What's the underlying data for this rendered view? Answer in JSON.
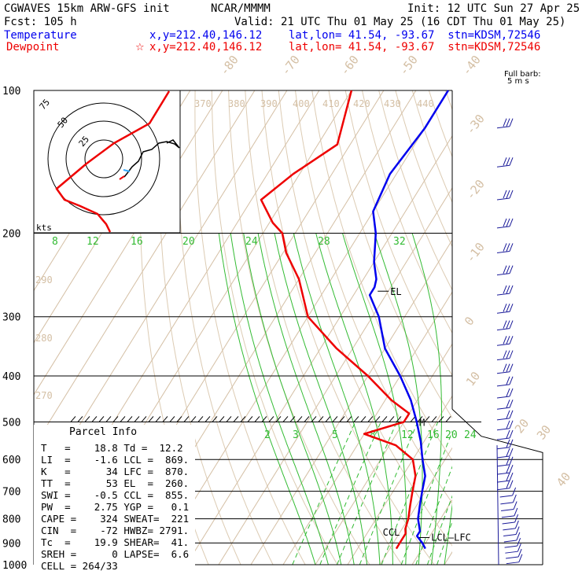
{
  "header": {
    "model": "CGWAVES 15km ARW-GFS init",
    "forecast": "Fcst:  105 h",
    "org": "NCAR/MMMM",
    "init": "Init: 12 UTC Sun 27 Apr 25",
    "valid": "Valid: 21 UTC Thu 01 May 25 (16 CDT Thu 01 May 25)",
    "temp_label": "Temperature",
    "temp_info": "x,y=212.40,146.12    lat,lon= 41.54, -93.67  stn=KDSM,72546",
    "dew_label": "Dewpoint",
    "dew_info": "x,y=212.40,146.12    lat,lon= 41.54, -93.67  stn=KDSM,72546",
    "barb_note_1": "Full barb:",
    "barb_note_2": "5 m s",
    "colors": {
      "temperature": "#0000ee",
      "dewpoint": "#ee0000"
    }
  },
  "parcel_info": {
    "title": "Parcel Info",
    "rows": [
      "T   =    18.8 Td =  12.2",
      "LI  =    -1.6 LCL =  869.",
      "K   =      34 LFC =  870.",
      "TT  =      53 EL  =  260.",
      "SWI =    -0.5 CCL =  855.",
      "PW  =    2.75 YGP =   0.1",
      "CAPE =    324 SWEAT=  221",
      "CIN  =    -72 HWBZ= 2791.",
      "Tc  =    19.9 SHEAR=  41.",
      "SREH =      0 LAPSE=  6.6",
      "CELL = 264/33"
    ]
  },
  "hodograph": {
    "ring_labels": [
      "75",
      "50",
      "25"
    ],
    "unit_label": "kts"
  },
  "chart_data": {
    "type": "line",
    "chart_kind": "skew-T log-P sounding",
    "y_axis": {
      "label": "",
      "ticks": [
        100,
        200,
        300,
        400,
        500,
        600,
        700,
        800,
        900,
        1000
      ]
    },
    "isotherm_labels": [
      "-80",
      "-70",
      "-60",
      "-50",
      "-40",
      "-30",
      "-20",
      "-10",
      "0",
      "10",
      "20",
      "30",
      "40"
    ],
    "theta_labels": [
      "370",
      "380",
      "390",
      "400",
      "410",
      "420",
      "430",
      "440",
      "290",
      "280",
      "270"
    ],
    "moist_adiabat_labels": [
      "8",
      "12",
      "16",
      "20",
      "24",
      "28",
      "32"
    ],
    "mixing_ratio_labels": [
      "2",
      "3",
      "5",
      "8",
      "12",
      "16",
      "20",
      "24"
    ],
    "annotations": {
      "el": "EL",
      "ccl": "CCL",
      "lcl_lfc": "LCL—LFC",
      "mid": "M"
    },
    "series": [
      {
        "name": "Temperature",
        "color": "#0000ee",
        "points": [
          [
            100,
            -60
          ],
          [
            120,
            -60
          ],
          [
            150,
            -62
          ],
          [
            180,
            -60
          ],
          [
            200,
            -55
          ],
          [
            230,
            -50
          ],
          [
            250,
            -46
          ],
          [
            260,
            -45
          ],
          [
            270,
            -45
          ],
          [
            300,
            -38
          ],
          [
            350,
            -30
          ],
          [
            400,
            -20
          ],
          [
            450,
            -12
          ],
          [
            500,
            -6
          ],
          [
            550,
            -1
          ],
          [
            600,
            3
          ],
          [
            650,
            7
          ],
          [
            700,
            9
          ],
          [
            750,
            11
          ],
          [
            800,
            13
          ],
          [
            850,
            16
          ],
          [
            870,
            16
          ],
          [
            900,
            19
          ],
          [
            925,
            21
          ]
        ]
      },
      {
        "name": "Dewpoint",
        "color": "#ee0000",
        "points": [
          [
            100,
            -90
          ],
          [
            130,
            -84
          ],
          [
            150,
            -92
          ],
          [
            170,
            -97
          ],
          [
            190,
            -89
          ],
          [
            200,
            -84
          ],
          [
            220,
            -79
          ],
          [
            250,
            -70
          ],
          [
            300,
            -60
          ],
          [
            350,
            -45
          ],
          [
            400,
            -30
          ],
          [
            450,
            -18
          ],
          [
            480,
            -10
          ],
          [
            500,
            -10
          ],
          [
            530,
            -20
          ],
          [
            560,
            -8
          ],
          [
            600,
            0
          ],
          [
            650,
            4
          ],
          [
            700,
            6
          ],
          [
            750,
            8
          ],
          [
            800,
            10
          ],
          [
            840,
            11
          ],
          [
            860,
            12
          ],
          [
            900,
            12
          ],
          [
            925,
            12
          ]
        ]
      }
    ],
    "parcel": {
      "name": "Parcel",
      "points": [
        [
          925,
          21
        ],
        [
          870,
          16
        ],
        [
          800,
          12
        ],
        [
          700,
          6
        ],
        [
          600,
          -2
        ],
        [
          500,
          -10
        ],
        [
          400,
          -25
        ],
        [
          300,
          -43
        ],
        [
          260,
          -52
        ]
      ]
    },
    "wind_barbs_note": "Full barb: 5 m s-1"
  }
}
